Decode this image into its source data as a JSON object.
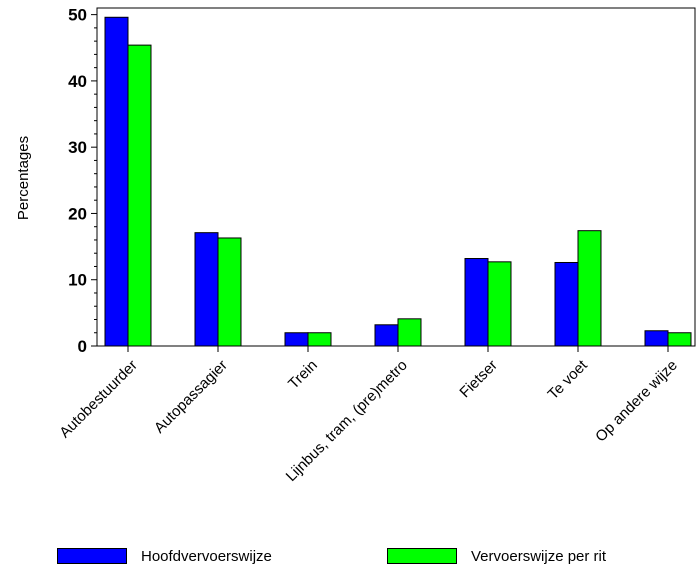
{
  "chart_data": {
    "type": "bar",
    "title": "",
    "xlabel": "",
    "ylabel": "Percentages",
    "ylim": [
      0,
      51
    ],
    "yticks": [
      0,
      10,
      20,
      30,
      40,
      50
    ],
    "grid": false,
    "legend_position": "bottom",
    "categories": [
      "Autobestuurder",
      "Autopassagier",
      "Trein",
      "Lijnbus, tram, (pre)metro",
      "Fietser",
      "Te voet",
      "Op andere wijze"
    ],
    "series": [
      {
        "name": "Hoofdvervoerswijze",
        "color": "#0000ff",
        "values": [
          49.6,
          17.1,
          2.0,
          3.2,
          13.2,
          12.6,
          2.3
        ]
      },
      {
        "name": "Vervoerswijze per rit",
        "color": "#00ff00",
        "values": [
          45.4,
          16.3,
          2.0,
          4.1,
          12.7,
          17.4,
          2.0
        ]
      }
    ]
  }
}
